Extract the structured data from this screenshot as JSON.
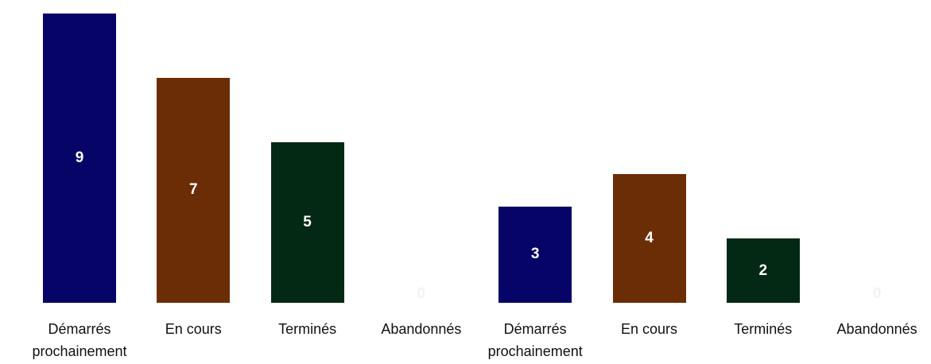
{
  "chart_data": [
    {
      "type": "bar",
      "categories": [
        "Démarrés prochainement",
        "En cours",
        "Terminés",
        "Abandonnés"
      ],
      "values": [
        9,
        7,
        5,
        0
      ],
      "colors": [
        "#060466",
        "#6b2d06",
        "#032814",
        "#6b2d06"
      ]
    },
    {
      "type": "bar",
      "categories": [
        "Démarrés prochainement",
        "En cours",
        "Terminés",
        "Abandonnés"
      ],
      "values": [
        3,
        4,
        2,
        0
      ],
      "colors": [
        "#060466",
        "#6b2d06",
        "#032814",
        "#6b2d06"
      ]
    }
  ]
}
